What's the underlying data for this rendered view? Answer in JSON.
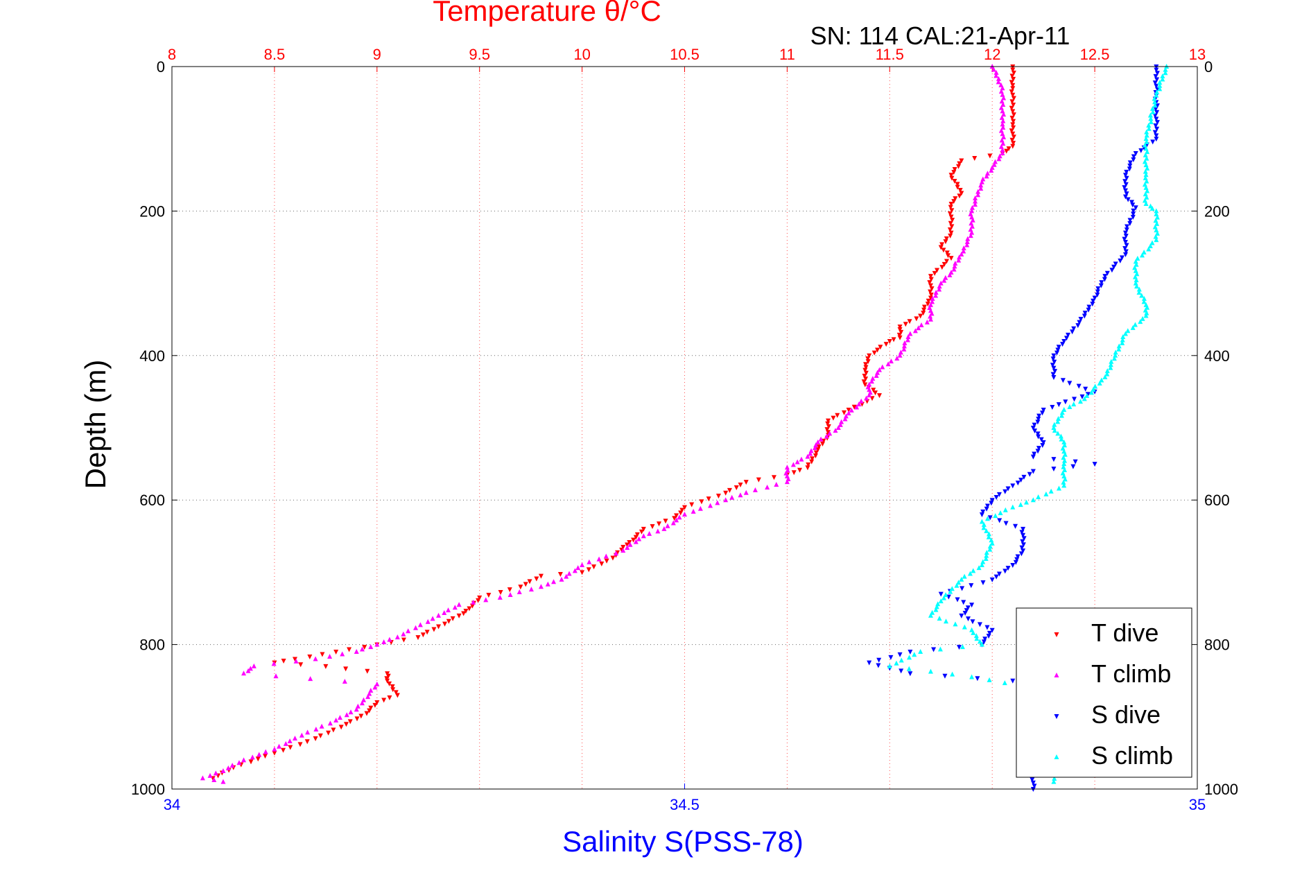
{
  "header": {
    "title": "Temperature θ/°C",
    "subtitle": "SN: 114  CAL:21-Apr-11"
  },
  "axes": {
    "left_label": "Depth (m)",
    "bottom_label": "Salinity S(PSS-78)",
    "top_label": "Temperature θ/°C"
  },
  "legend": [
    "T dive",
    "T climb",
    "S dive",
    "S climb"
  ],
  "colors": {
    "t_dive": "#ff0000",
    "t_climb": "#ff00ff",
    "s_dive": "#0000ff",
    "s_climb": "#00ffff",
    "temperature_axis": "#ff0000",
    "salinity_axis": "#0000ff"
  },
  "chart_data": {
    "type": "scatter",
    "title": "Temperature θ/°C",
    "subtitle": "SN: 114  CAL:21-Apr-11",
    "ylabel": "Depth (m)",
    "ylim": [
      0,
      1000
    ],
    "y_reversed": true,
    "y_ticks": [
      0,
      200,
      400,
      600,
      800,
      1000
    ],
    "x_top": {
      "label": "Temperature θ/°C",
      "lim": [
        8,
        13
      ],
      "ticks": [
        8,
        8.5,
        9,
        9.5,
        10,
        10.5,
        11,
        11.5,
        12,
        12.5,
        13
      ]
    },
    "x_bottom": {
      "label": "Salinity S(PSS-78)",
      "lim": [
        34,
        35
      ],
      "ticks": [
        34,
        34.5,
        35
      ]
    },
    "grid": true,
    "legend_position": "bottom-right",
    "series": [
      {
        "name": "T dive",
        "axis": "top",
        "marker": "triangle-down",
        "color": "#ff0000",
        "points": [
          [
            12.1,
            0
          ],
          [
            12.1,
            30
          ],
          [
            12.1,
            80
          ],
          [
            12.1,
            110
          ],
          [
            12.05,
            120
          ],
          [
            11.85,
            130
          ],
          [
            11.8,
            150
          ],
          [
            11.85,
            175
          ],
          [
            11.8,
            190
          ],
          [
            11.8,
            230
          ],
          [
            11.75,
            250
          ],
          [
            11.8,
            265
          ],
          [
            11.7,
            290
          ],
          [
            11.7,
            320
          ],
          [
            11.65,
            345
          ],
          [
            11.55,
            360
          ],
          [
            11.55,
            375
          ],
          [
            11.5,
            380
          ],
          [
            11.4,
            400
          ],
          [
            11.38,
            420
          ],
          [
            11.38,
            440
          ],
          [
            11.45,
            455
          ],
          [
            11.3,
            475
          ],
          [
            11.2,
            490
          ],
          [
            11.2,
            510
          ],
          [
            11.15,
            530
          ],
          [
            11.1,
            555
          ],
          [
            11.0,
            565
          ],
          [
            10.8,
            575
          ],
          [
            10.7,
            590
          ],
          [
            10.5,
            610
          ],
          [
            10.45,
            625
          ],
          [
            10.3,
            640
          ],
          [
            10.25,
            655
          ],
          [
            10.2,
            665
          ],
          [
            10.15,
            680
          ],
          [
            10.0,
            700
          ],
          [
            9.8,
            705
          ],
          [
            9.7,
            720
          ],
          [
            9.5,
            735
          ],
          [
            9.45,
            750
          ],
          [
            9.4,
            760
          ],
          [
            9.3,
            775
          ],
          [
            9.2,
            790
          ],
          [
            9.0,
            800
          ],
          [
            8.8,
            810
          ],
          [
            8.6,
            820
          ],
          [
            8.5,
            825
          ],
          [
            8.75,
            830
          ],
          [
            9.05,
            840
          ],
          [
            9.05,
            850
          ],
          [
            9.1,
            870
          ],
          [
            9.0,
            880
          ],
          [
            8.95,
            895
          ],
          [
            8.85,
            910
          ],
          [
            8.7,
            930
          ],
          [
            8.5,
            950
          ],
          [
            8.3,
            970
          ],
          [
            8.2,
            985
          ]
        ]
      },
      {
        "name": "T climb",
        "axis": "top",
        "marker": "triangle-up",
        "color": "#ff00ff",
        "points": [
          [
            12.0,
            0
          ],
          [
            12.05,
            30
          ],
          [
            12.05,
            80
          ],
          [
            12.05,
            120
          ],
          [
            12.0,
            140
          ],
          [
            11.95,
            160
          ],
          [
            11.9,
            200
          ],
          [
            11.9,
            230
          ],
          [
            11.85,
            260
          ],
          [
            11.8,
            285
          ],
          [
            11.75,
            300
          ],
          [
            11.7,
            330
          ],
          [
            11.7,
            350
          ],
          [
            11.6,
            370
          ],
          [
            11.55,
            400
          ],
          [
            11.45,
            420
          ],
          [
            11.4,
            440
          ],
          [
            11.4,
            455
          ],
          [
            11.3,
            480
          ],
          [
            11.25,
            500
          ],
          [
            11.15,
            520
          ],
          [
            11.1,
            540
          ],
          [
            11.0,
            555
          ],
          [
            11.0,
            575
          ],
          [
            10.8,
            590
          ],
          [
            10.7,
            600
          ],
          [
            10.5,
            620
          ],
          [
            10.4,
            640
          ],
          [
            10.3,
            650
          ],
          [
            10.2,
            670
          ],
          [
            10.0,
            690
          ],
          [
            9.9,
            710
          ],
          [
            9.8,
            720
          ],
          [
            9.6,
            735
          ],
          [
            9.4,
            745
          ],
          [
            9.3,
            760
          ],
          [
            9.1,
            790
          ],
          [
            9.0,
            800
          ],
          [
            8.9,
            810
          ],
          [
            8.7,
            820
          ],
          [
            8.4,
            830
          ],
          [
            8.35,
            840
          ],
          [
            9.0,
            855
          ],
          [
            8.9,
            890
          ],
          [
            8.8,
            905
          ],
          [
            8.6,
            930
          ],
          [
            8.5,
            945
          ],
          [
            8.35,
            960
          ],
          [
            8.25,
            975
          ],
          [
            8.15,
            985
          ],
          [
            8.25,
            990
          ]
        ]
      },
      {
        "name": "S dive",
        "axis": "bottom",
        "marker": "triangle-down",
        "color": "#0000ff",
        "points": [
          [
            34.96,
            0
          ],
          [
            34.96,
            40
          ],
          [
            34.96,
            100
          ],
          [
            34.94,
            120
          ],
          [
            34.93,
            150
          ],
          [
            34.93,
            180
          ],
          [
            34.94,
            195
          ],
          [
            34.93,
            230
          ],
          [
            34.93,
            260
          ],
          [
            34.91,
            290
          ],
          [
            34.9,
            320
          ],
          [
            34.89,
            345
          ],
          [
            34.87,
            380
          ],
          [
            34.86,
            400
          ],
          [
            34.86,
            430
          ],
          [
            34.9,
            450
          ],
          [
            34.88,
            460
          ],
          [
            34.85,
            475
          ],
          [
            34.84,
            500
          ],
          [
            34.85,
            520
          ],
          [
            34.84,
            540
          ],
          [
            34.9,
            550
          ],
          [
            34.84,
            560
          ],
          [
            34.82,
            580
          ],
          [
            34.8,
            600
          ],
          [
            34.79,
            620
          ],
          [
            34.83,
            640
          ],
          [
            34.83,
            670
          ],
          [
            34.82,
            690
          ],
          [
            34.8,
            710
          ],
          [
            34.75,
            730
          ],
          [
            34.78,
            745
          ],
          [
            34.77,
            760
          ],
          [
            34.8,
            780
          ],
          [
            34.79,
            800
          ],
          [
            34.72,
            810
          ],
          [
            34.68,
            825
          ],
          [
            34.72,
            840
          ],
          [
            34.82,
            850
          ],
          [
            34.9,
            860
          ],
          [
            34.85,
            900
          ],
          [
            34.84,
            960
          ],
          [
            34.84,
            1000
          ]
        ]
      },
      {
        "name": "S climb",
        "axis": "bottom",
        "marker": "triangle-up",
        "color": "#00ffff",
        "points": [
          [
            34.97,
            0
          ],
          [
            34.96,
            40
          ],
          [
            34.95,
            100
          ],
          [
            34.95,
            150
          ],
          [
            34.95,
            190
          ],
          [
            34.96,
            200
          ],
          [
            34.96,
            240
          ],
          [
            34.94,
            270
          ],
          [
            34.94,
            300
          ],
          [
            34.95,
            330
          ],
          [
            34.95,
            345
          ],
          [
            34.93,
            370
          ],
          [
            34.92,
            400
          ],
          [
            34.91,
            430
          ],
          [
            34.89,
            460
          ],
          [
            34.87,
            475
          ],
          [
            34.86,
            500
          ],
          [
            34.87,
            520
          ],
          [
            34.87,
            550
          ],
          [
            34.87,
            580
          ],
          [
            34.84,
            600
          ],
          [
            34.82,
            610
          ],
          [
            34.79,
            630
          ],
          [
            34.8,
            660
          ],
          [
            34.79,
            690
          ],
          [
            34.77,
            710
          ],
          [
            34.75,
            740
          ],
          [
            34.74,
            760
          ],
          [
            34.78,
            780
          ],
          [
            34.79,
            800
          ],
          [
            34.73,
            810
          ],
          [
            34.7,
            830
          ],
          [
            34.78,
            845
          ],
          [
            34.88,
            870
          ],
          [
            34.86,
            950
          ],
          [
            34.86,
            990
          ]
        ]
      }
    ]
  }
}
